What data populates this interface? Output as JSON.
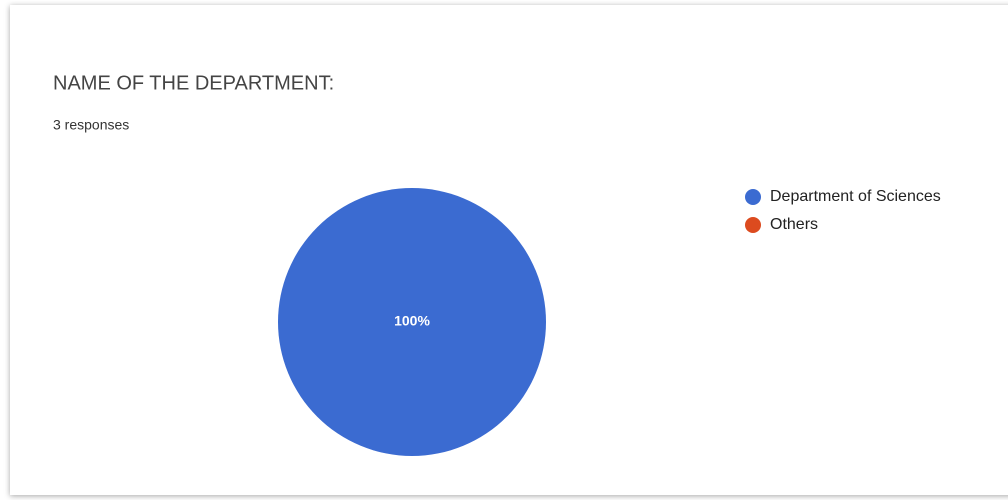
{
  "chart_data": {
    "type": "pie",
    "title": "NAME OF THE DEPARTMENT:",
    "subtitle": "3 responses",
    "categories": [
      "Department of Sciences",
      "Others"
    ],
    "values": [
      100,
      0
    ],
    "value_labels": [
      "100%",
      null
    ],
    "colors": [
      "#3b6bd1",
      "#dc4b1f"
    ],
    "legend": "right"
  }
}
